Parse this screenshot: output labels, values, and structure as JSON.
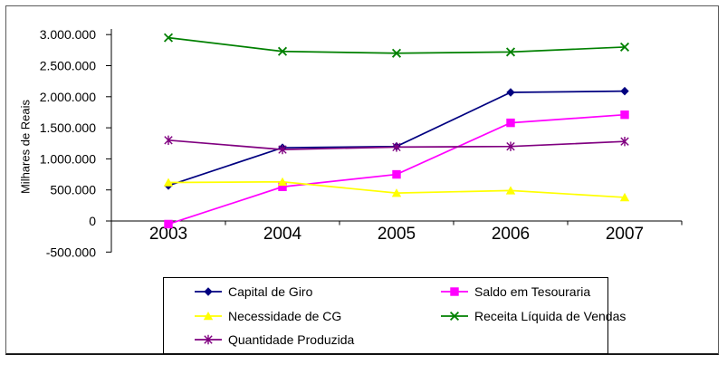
{
  "chart_data": {
    "type": "line",
    "title": "",
    "xlabel": "",
    "ylabel": "Milhares de Reais",
    "categories": [
      "2003",
      "2004",
      "2005",
      "2006",
      "2007"
    ],
    "series": [
      {
        "name": "Capital de Giro",
        "color": "#000080",
        "marker": "diamond",
        "values": [
          570000,
          1180000,
          1200000,
          2070000,
          2090000
        ]
      },
      {
        "name": "Saldo em Tesouraria",
        "color": "#FF00FF",
        "marker": "square",
        "values": [
          -50000,
          550000,
          750000,
          1580000,
          1710000
        ]
      },
      {
        "name": "Necessidade de CG",
        "color": "#FFFF00",
        "marker": "triangle",
        "values": [
          620000,
          630000,
          450000,
          490000,
          380000
        ]
      },
      {
        "name": "Receita Líquida de Vendas",
        "color": "#008000",
        "marker": "x",
        "values": [
          2950000,
          2730000,
          2700000,
          2720000,
          2800000
        ]
      },
      {
        "name": "Quantidade Produzida",
        "color": "#800080",
        "marker": "star",
        "values": [
          1300000,
          1150000,
          1190000,
          1200000,
          1280000
        ]
      }
    ],
    "y_axis": {
      "min": -500000,
      "max": 3000000,
      "step": 500000,
      "tick_labels": [
        "3.000.000",
        "2.500.000",
        "2.000.000",
        "1.500.000",
        "1.000.000",
        "500.000",
        "0",
        "-500.000"
      ]
    },
    "grid": false,
    "legend_position": "bottom",
    "colors": {
      "axis": "#000000",
      "text": "#000000",
      "background": "#ffffff"
    }
  }
}
